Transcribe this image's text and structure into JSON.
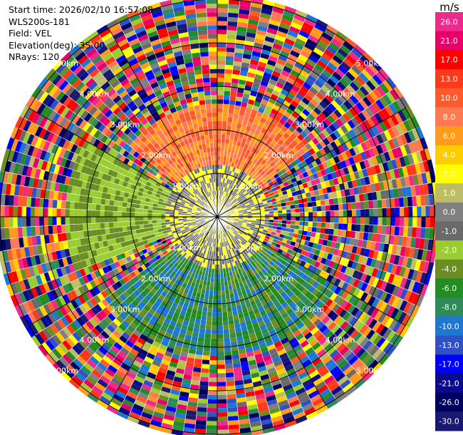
{
  "header": {
    "start_time": "Start time: 2026/02/10 16:57:08",
    "instrument": "WLS200s-181",
    "field": "Field: VEL",
    "elevation": "Elevation(deg): 35.00",
    "nrays": "NRays: 120"
  },
  "chart_data": {
    "type": "heatmap",
    "projection": "polar-ppi",
    "field": "VEL",
    "units": "m/s",
    "nrays": 120,
    "range_rings_km": [
      1.0,
      2.0,
      3.0,
      4.0,
      5.0
    ],
    "ring_labels": [
      "1.00km",
      "2.00km",
      "3.00km",
      "4.00km",
      "5.00km"
    ],
    "spoke_angles_deg": [
      0,
      30,
      60,
      90,
      120,
      150,
      180,
      210,
      240,
      270,
      300,
      330
    ],
    "max_range_km": 5.0,
    "colorbar": {
      "unit": "m/s",
      "levels": [
        {
          "label": "26.0",
          "color": "#ee2a8c"
        },
        {
          "label": "21.0",
          "color": "#e8006a"
        },
        {
          "label": "17.0",
          "color": "#ff0000"
        },
        {
          "label": "13.0",
          "color": "#ff3a1a"
        },
        {
          "label": "10.0",
          "color": "#ff5a2c"
        },
        {
          "label": "8.0",
          "color": "#ff7a50"
        },
        {
          "label": "6.0",
          "color": "#ff9a1a"
        },
        {
          "label": "4.0",
          "color": "#ffcc00"
        },
        {
          "label": "2.0",
          "color": "#ffff00"
        },
        {
          "label": "1.0",
          "color": "#bdbd66"
        },
        {
          "label": "0.0",
          "color": "#808080"
        },
        {
          "label": "-1.0",
          "color": "#6a6a6a"
        },
        {
          "label": "-2.0",
          "color": "#9acd32"
        },
        {
          "label": "-4.0",
          "color": "#6b8e23"
        },
        {
          "label": "-6.0",
          "color": "#228b22"
        },
        {
          "label": "-8.0",
          "color": "#2e8b57"
        },
        {
          "label": "-10.0",
          "color": "#1e78d2"
        },
        {
          "label": "-13.0",
          "color": "#3050c8"
        },
        {
          "label": "-17.0",
          "color": "#0000ff"
        },
        {
          "label": "-21.0",
          "color": "#0a0a8c"
        },
        {
          "label": "-26.0",
          "color": "#000060"
        },
        {
          "label": "-30.0",
          "color": "#191970"
        }
      ]
    },
    "regions": [
      {
        "description": "north",
        "az_from": 310,
        "az_to": 55,
        "r_from_km": 1.2,
        "r_to_km": 2.6,
        "values_m_s": [
          10.0,
          8.0,
          6.0
        ]
      },
      {
        "description": "near field",
        "az_from": 0,
        "az_to": 360,
        "r_from_km": 0.0,
        "r_to_km": 1.2,
        "values_m_s": [
          2.0,
          0.0,
          -1.0
        ]
      },
      {
        "description": "west",
        "az_from": 250,
        "az_to": 300,
        "r_from_km": 1.0,
        "r_to_km": 3.5,
        "values_m_s": [
          -2.0,
          -4.0
        ]
      },
      {
        "description": "south",
        "az_from": 120,
        "az_to": 235,
        "r_from_km": 0.8,
        "r_to_km": 3.2,
        "values_m_s": [
          -6.0,
          -4.0,
          -8.0,
          -10.0
        ]
      },
      {
        "description": "outer noise",
        "az_from": 0,
        "az_to": 360,
        "r_from_km": 3.2,
        "r_to_km": 5.0,
        "values_m_s": "random"
      }
    ]
  }
}
